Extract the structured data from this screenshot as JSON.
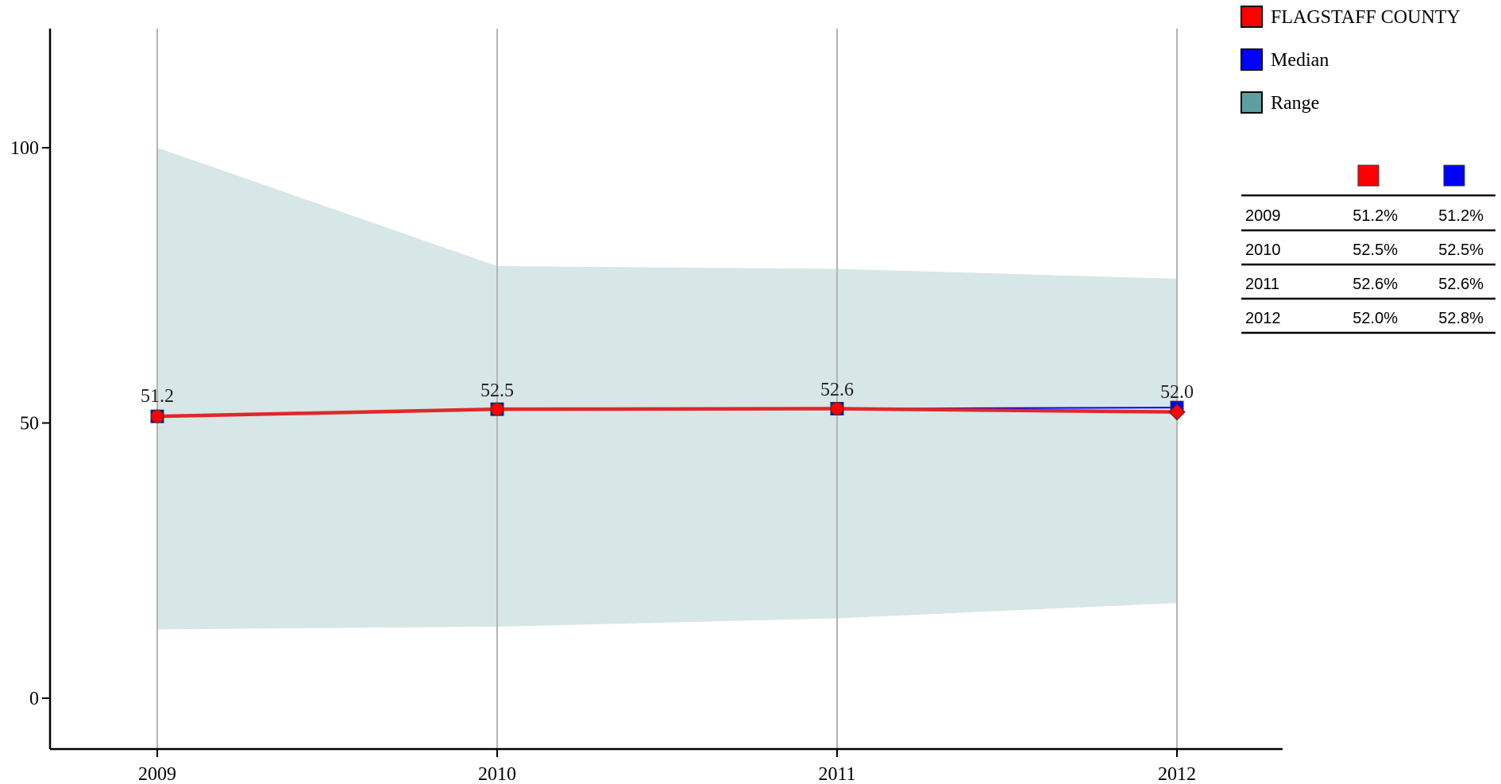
{
  "chart_data": {
    "type": "line",
    "categories": [
      "2009",
      "2010",
      "2011",
      "2012"
    ],
    "series": [
      {
        "name": "FLAGSTAFF COUNTY",
        "values": [
          51.2,
          52.5,
          52.6,
          52.0
        ],
        "color": "#ff0000",
        "line_color": "#e0282a"
      },
      {
        "name": "Median",
        "values": [
          51.2,
          52.5,
          52.6,
          52.8
        ],
        "color": "#0000ff"
      }
    ],
    "range": {
      "name": "Range",
      "low": [
        12.5,
        13.0,
        14.5,
        17.3
      ],
      "high": [
        100.0,
        78.5,
        78.0,
        76.2
      ],
      "color": "#d7e6e6",
      "legend_color": "#5f9ea0"
    },
    "data_labels": [
      "51.2",
      "52.5",
      "52.6",
      "52.0"
    ],
    "y_ticks": [
      "0",
      "50",
      "100"
    ],
    "x_ticks": [
      "2009",
      "2010",
      "2011",
      "2012"
    ],
    "ylim": [
      -9,
      122
    ],
    "grid": "vertical",
    "legend_position": "top-right",
    "table": {
      "rows": [
        {
          "year": "2009",
          "county": "51.2%",
          "median": "51.2%"
        },
        {
          "year": "2010",
          "county": "52.5%",
          "median": "52.5%"
        },
        {
          "year": "2011",
          "county": "52.6%",
          "median": "52.6%"
        },
        {
          "year": "2012",
          "county": "52.0%",
          "median": "52.8%"
        }
      ]
    }
  }
}
